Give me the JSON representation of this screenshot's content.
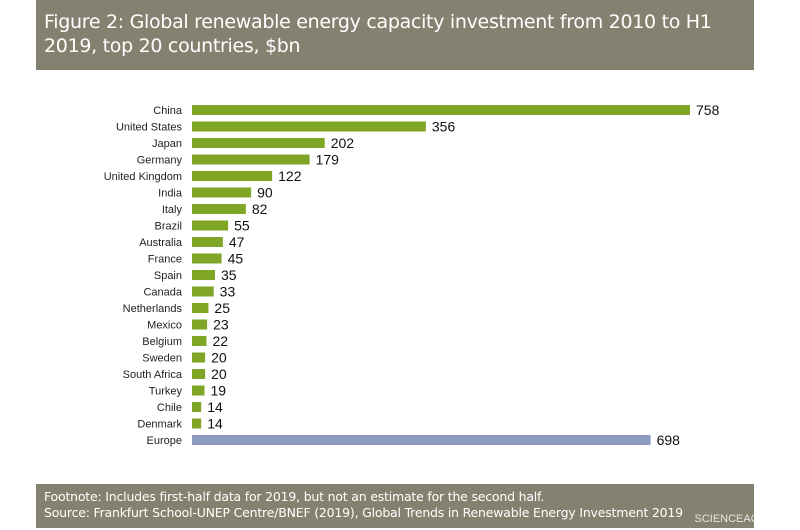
{
  "chart_data": {
    "type": "bar",
    "orientation": "horizontal",
    "title": "Figure 2: Global renewable energy capacity investment from 2010 to H1 2019, top 20 countries, $bn",
    "categories": [
      "China",
      "United States",
      "Japan",
      "Germany",
      "United Kingdom",
      "India",
      "Italy",
      "Brazil",
      "Australia",
      "France",
      "Spain",
      "Canada",
      "Netherlands",
      "Mexico",
      "Belgium",
      "Sweden",
      "South Africa",
      "Turkey",
      "Chile",
      "Denmark",
      "Europe"
    ],
    "values": [
      758,
      356,
      202,
      179,
      122,
      90,
      82,
      55,
      47,
      45,
      35,
      33,
      25,
      23,
      22,
      20,
      20,
      19,
      14,
      14,
      698
    ],
    "colors": {
      "country": "#7fa626",
      "Europe": "#8d9bbf"
    },
    "xlim": [
      0,
      800
    ],
    "grid": false,
    "data_labels": true
  },
  "footer": {
    "footnote": "Footnote: Includes first-half data for 2019, but not an estimate for the second half.",
    "source": "Source: Frankfurt School-UNEP Centre/BNEF (2019), Global Trends in Renewable Energy Investment 2019"
  },
  "watermark": "SCIENCEAQ.COM"
}
